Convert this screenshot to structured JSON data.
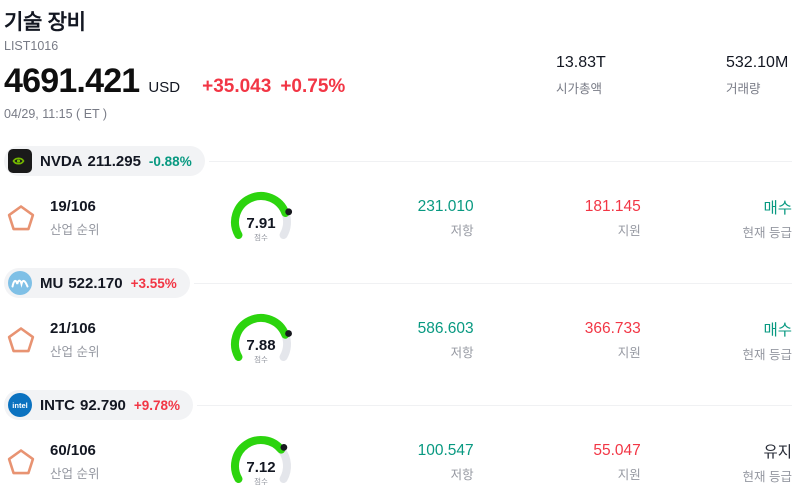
{
  "header": {
    "title": "기술 장비",
    "list_id": "LIST1016",
    "price": "4691.421",
    "currency": "USD",
    "change": "+35.043",
    "change_pct": "+0.75%",
    "datetime": "04/29, 11:15 ( ET )",
    "market_cap": {
      "value": "13.83T",
      "label": "시가총액"
    },
    "volume": {
      "value": "532.10M",
      "label": "거래량"
    }
  },
  "labels": {
    "rank": "산업 순위",
    "score": "점수",
    "resistance": "저항",
    "support": "지원",
    "rating": "현재 등급"
  },
  "colors": {
    "up_red": "#f23645",
    "down_teal": "#089981",
    "gauge_green": "#2cd40e"
  },
  "stocks": [
    {
      "ticker": "NVDA",
      "price": "211.295",
      "change_pct": "-0.88%",
      "rank": "19/106",
      "score": 7.91,
      "resistance": "231.010",
      "support": "181.145",
      "rating": "매수"
    },
    {
      "ticker": "MU",
      "price": "522.170",
      "change_pct": "+3.55%",
      "rank": "21/106",
      "score": 7.88,
      "resistance": "586.603",
      "support": "366.733",
      "rating": "매수"
    },
    {
      "ticker": "INTC",
      "price": "92.790",
      "change_pct": "+9.78%",
      "rank": "60/106",
      "score": 7.12,
      "resistance": "100.547",
      "support": "55.047",
      "rating": "유지"
    }
  ]
}
